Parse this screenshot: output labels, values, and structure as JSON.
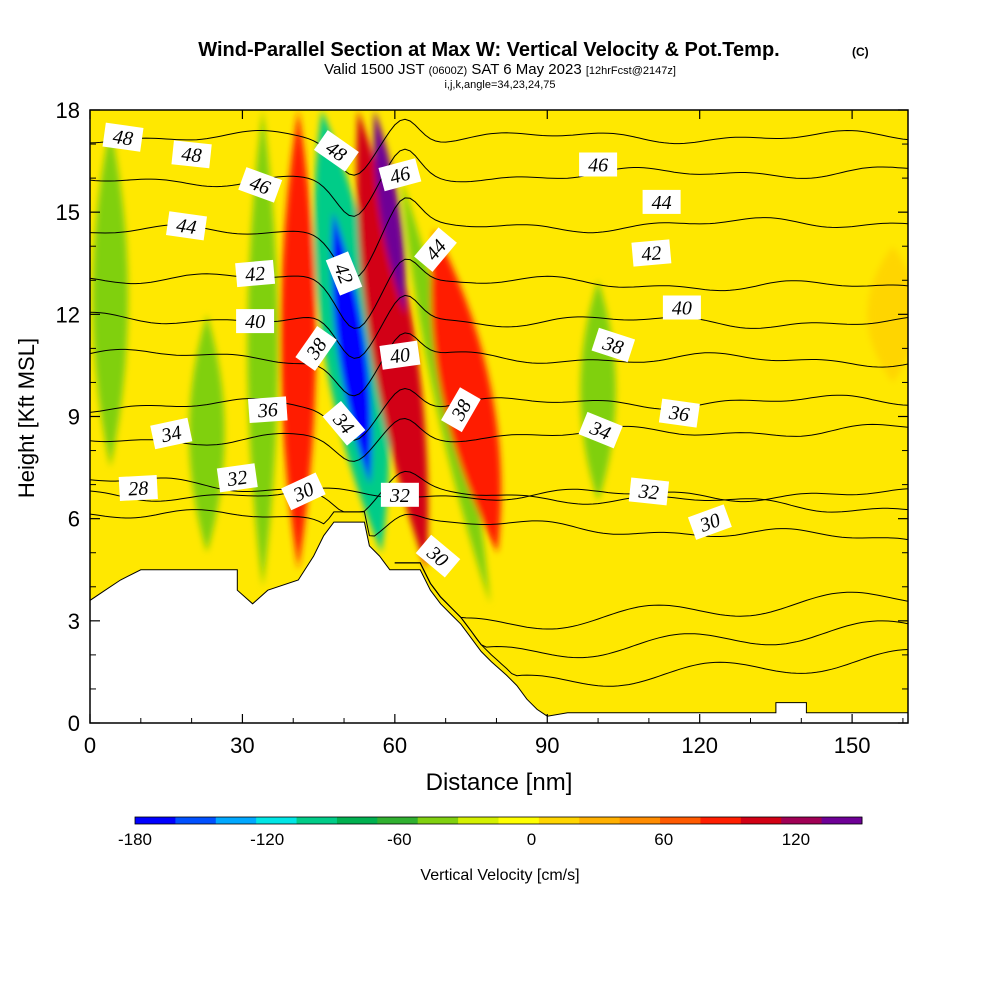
{
  "chart_data": {
    "type": "heatmap",
    "title": "Wind-Parallel Section at Max W: Vertical Velocity & Pot.Temp.",
    "title_mark": "(C)",
    "subtitle_parts": [
      "Valid 1500 JST",
      "(0600Z)",
      "SAT 6 May 2023",
      "[12hrFcst@2147z]"
    ],
    "subtitle2": "i,j,k,angle=34,23,24,75",
    "xlabel": "Distance [nm]",
    "ylabel": "Height [Kft MSL]",
    "xlim": [
      0,
      161
    ],
    "ylim": [
      0,
      18
    ],
    "x_ticks": [
      "0",
      "30",
      "60",
      "90",
      "120",
      "150"
    ],
    "y_ticks": [
      "0",
      "3",
      "6",
      "9",
      "12",
      "15",
      "18"
    ],
    "grid": false,
    "colorbar": {
      "label": "Vertical Velocity [cm/s]",
      "tick_labels": [
        "-180",
        "-120",
        "-60",
        "0",
        "60",
        "120"
      ],
      "tick_values": [
        -180,
        -120,
        -60,
        0,
        60,
        120
      ],
      "min": -180,
      "max": 150,
      "colors": [
        "#0000ff",
        "#0050ff",
        "#00a8ff",
        "#00e6e6",
        "#00cc88",
        "#00b050",
        "#30b030",
        "#80d010",
        "#d4f000",
        "#ffff00",
        "#ffd500",
        "#ffb000",
        "#ff8c00",
        "#ff5a00",
        "#ff1e00",
        "#d20014",
        "#a00055",
        "#6e0096"
      ]
    },
    "terrain_kft": [
      [
        0,
        3.6
      ],
      [
        3,
        3.9
      ],
      [
        6,
        4.2
      ],
      [
        10,
        4.5
      ],
      [
        29,
        4.5
      ],
      [
        29,
        3.9
      ],
      [
        32,
        3.5
      ],
      [
        35,
        3.9
      ],
      [
        41,
        4.2
      ],
      [
        44,
        4.9
      ],
      [
        46,
        5.5
      ],
      [
        48,
        5.9
      ],
      [
        54,
        5.9
      ],
      [
        55,
        5.2
      ],
      [
        57,
        4.9
      ],
      [
        59,
        4.5
      ],
      [
        65,
        4.5
      ],
      [
        67,
        3.9
      ],
      [
        69,
        3.5
      ],
      [
        71,
        3.2
      ],
      [
        73,
        2.9
      ],
      [
        75,
        2.5
      ],
      [
        77,
        2.1
      ],
      [
        79,
        1.8
      ],
      [
        82,
        1.4
      ],
      [
        84,
        1.1
      ],
      [
        86,
        0.7
      ],
      [
        88,
        0.4
      ],
      [
        90,
        0.2
      ],
      [
        94,
        0.3
      ],
      [
        135,
        0.3
      ],
      [
        135,
        0.6
      ],
      [
        141,
        0.6
      ],
      [
        141,
        0.3
      ],
      [
        161,
        0.3
      ]
    ],
    "velocity_bands": [
      {
        "x": 4,
        "hw": 3.5,
        "y0": 7.5,
        "y1": 17.5,
        "v": -40
      },
      {
        "x": 23,
        "hw": 3.5,
        "y0": 5,
        "y1": 12,
        "v": -40
      },
      {
        "x": 34,
        "hw": 3,
        "y0": 4,
        "y1": 18,
        "v": -50
      },
      {
        "x": 41,
        "hw": 3.5,
        "y0": 4.5,
        "y1": 18,
        "v": 80
      },
      {
        "x": 51.5,
        "hw": 6,
        "y0": 5,
        "y1": 18,
        "v": -90,
        "tilt": -0.9
      },
      {
        "x": 51.5,
        "hw": 2.8,
        "y0": 7,
        "y1": 15,
        "v": -175,
        "tilt": -0.9
      },
      {
        "x": 59.5,
        "hw": 4.5,
        "y0": 4.5,
        "y1": 18,
        "v": 110,
        "tilt": -1.0
      },
      {
        "x": 59,
        "hw": 2,
        "y0": 12,
        "y1": 18,
        "v": 140,
        "tilt": -1.0
      },
      {
        "x": 70,
        "hw": 2.5,
        "y0": 3.5,
        "y1": 16,
        "v": -50,
        "tilt": -1.4
      },
      {
        "x": 74,
        "hw": 5,
        "y0": 5,
        "y1": 14.5,
        "v": 85,
        "tilt": -1.3
      },
      {
        "x": 100,
        "hw": 3.5,
        "y0": 6.5,
        "y1": 13,
        "v": -40
      },
      {
        "x": 158,
        "hw": 5,
        "y0": 10,
        "y1": 14,
        "v": 20
      }
    ],
    "theta_contours": [
      {
        "level": 28,
        "base": 6.7,
        "dip": 0,
        "slope": 0,
        "label": "28"
      },
      {
        "level": 30,
        "base": 6.2,
        "dip": 0.5,
        "slope": -0.005,
        "label": "30"
      },
      {
        "level": 32,
        "base": 7.1,
        "dip": 0.7,
        "slope": -0.005,
        "label": "32"
      },
      {
        "level": 34,
        "base": 8.3,
        "dip": 0.8,
        "slope": 0.002,
        "label": "34"
      },
      {
        "level": 36,
        "base": 9.3,
        "dip": 1.0,
        "slope": 0.001,
        "label": "36"
      },
      {
        "level": 38,
        "base": 10.8,
        "dip": 1.2,
        "slope": -0.001,
        "label": "38"
      },
      {
        "level": 40,
        "base": 11.9,
        "dip": 1.3,
        "slope": -0.001,
        "label": "40"
      },
      {
        "level": 42,
        "base": 13.1,
        "dip": 1.3,
        "slope": -0.002,
        "label": "42"
      },
      {
        "level": 44,
        "base": 14.4,
        "dip": 1.3,
        "slope": 0.002,
        "label": "44"
      },
      {
        "level": 46,
        "base": 15.9,
        "dip": 1.2,
        "slope": 0.002,
        "label": "46"
      },
      {
        "level": 48,
        "base": 17.2,
        "dip": 1.1,
        "slope": 0.0,
        "label": "48"
      }
    ],
    "contour_labels": [
      {
        "text": "28",
        "x": 9.5,
        "y": 6.9,
        "angle": -3
      },
      {
        "text": "30",
        "x": 42,
        "y": 6.8,
        "angle": -25
      },
      {
        "text": "30",
        "x": 68.5,
        "y": 4.9,
        "angle": 40
      },
      {
        "text": "30",
        "x": 122,
        "y": 5.9,
        "angle": -20
      },
      {
        "text": "32",
        "x": 29,
        "y": 7.2,
        "angle": -8
      },
      {
        "text": "32",
        "x": 61,
        "y": 6.7,
        "angle": 0
      },
      {
        "text": "32",
        "x": 110,
        "y": 6.8,
        "angle": 6
      },
      {
        "text": "34",
        "x": 16,
        "y": 8.5,
        "angle": -12
      },
      {
        "text": "34",
        "x": 50,
        "y": 8.8,
        "angle": 50
      },
      {
        "text": "34",
        "x": 100.5,
        "y": 8.6,
        "angle": 22
      },
      {
        "text": "36",
        "x": 35,
        "y": 9.2,
        "angle": -4
      },
      {
        "text": "36",
        "x": 116,
        "y": 9.1,
        "angle": 8
      },
      {
        "text": "38",
        "x": 44.5,
        "y": 11,
        "angle": -55
      },
      {
        "text": "38",
        "x": 73,
        "y": 9.2,
        "angle": -60
      },
      {
        "text": "38",
        "x": 103,
        "y": 11.1,
        "angle": 18
      },
      {
        "text": "40",
        "x": 32.5,
        "y": 11.8,
        "angle": 0
      },
      {
        "text": "40",
        "x": 61,
        "y": 10.8,
        "angle": -8
      },
      {
        "text": "40",
        "x": 116.5,
        "y": 12.2,
        "angle": 0
      },
      {
        "text": "42",
        "x": 32.5,
        "y": 13.2,
        "angle": -5
      },
      {
        "text": "42",
        "x": 50,
        "y": 13.2,
        "angle": 68
      },
      {
        "text": "42",
        "x": 110.5,
        "y": 13.8,
        "angle": -5
      },
      {
        "text": "44",
        "x": 19,
        "y": 14.6,
        "angle": 8
      },
      {
        "text": "44",
        "x": 68,
        "y": 13.9,
        "angle": -50
      },
      {
        "text": "44",
        "x": 112.5,
        "y": 15.3,
        "angle": 0
      },
      {
        "text": "46",
        "x": 33.5,
        "y": 15.8,
        "angle": 20
      },
      {
        "text": "46",
        "x": 61,
        "y": 16.1,
        "angle": -15
      },
      {
        "text": "46",
        "x": 100,
        "y": 16.4,
        "angle": 0
      },
      {
        "text": "48",
        "x": 6.5,
        "y": 17.2,
        "angle": 8
      },
      {
        "text": "48",
        "x": 20,
        "y": 16.7,
        "angle": 6
      },
      {
        "text": "48",
        "x": 48.5,
        "y": 16.8,
        "angle": 35
      }
    ]
  }
}
